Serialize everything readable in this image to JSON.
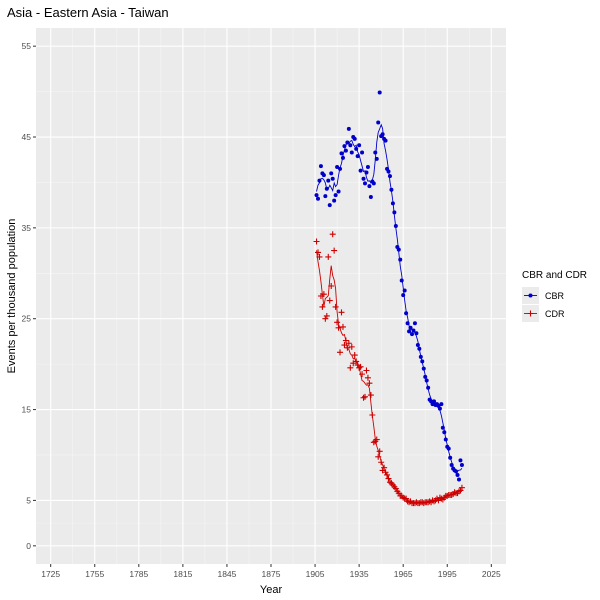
{
  "chart_data": {
    "type": "scatter",
    "title": "Asia - Eastern Asia - Taiwan",
    "xlabel": "Year",
    "ylabel": "Events per thousand population",
    "xlim": [
      1715,
      2035
    ],
    "ylim": [
      -2,
      57
    ],
    "x_ticks": [
      1725,
      1755,
      1785,
      1815,
      1845,
      1875,
      1905,
      1935,
      1965,
      1995,
      2025
    ],
    "y_ticks": [
      0,
      5,
      15,
      25,
      35,
      45,
      55
    ],
    "grid": true,
    "legend": {
      "title": "CBR and CDR",
      "position": "right"
    },
    "series": [
      {
        "name": "CBR",
        "color": "#0000CC",
        "marker": "dot",
        "x": [
          1906,
          1907,
          1908,
          1909,
          1910,
          1911,
          1912,
          1913,
          1914,
          1915,
          1916,
          1917,
          1918,
          1919,
          1920,
          1921,
          1922,
          1923,
          1924,
          1925,
          1926,
          1927,
          1928,
          1929,
          1930,
          1931,
          1932,
          1933,
          1934,
          1935,
          1936,
          1937,
          1938,
          1939,
          1940,
          1941,
          1942,
          1943,
          1944,
          1945,
          1946,
          1947,
          1948,
          1949,
          1950,
          1951,
          1952,
          1953,
          1954,
          1955,
          1956,
          1957,
          1958,
          1959,
          1960,
          1961,
          1962,
          1963,
          1964,
          1965,
          1966,
          1967,
          1968,
          1969,
          1970,
          1971,
          1972,
          1973,
          1974,
          1975,
          1976,
          1977,
          1978,
          1979,
          1980,
          1981,
          1982,
          1983,
          1984,
          1985,
          1986,
          1987,
          1988,
          1989,
          1990,
          1991,
          1992,
          1993,
          1994,
          1995,
          1996,
          1997,
          1998,
          1999,
          2000,
          2001,
          2002,
          2003,
          2004,
          2005
        ],
        "y": [
          38.6,
          38.2,
          40.2,
          41.8,
          41.0,
          40.8,
          38.5,
          39.3,
          40.2,
          37.5,
          41.0,
          40.4,
          38.0,
          38.6,
          41.7,
          39.0,
          41.5,
          43.2,
          42.7,
          44.0,
          43.5,
          44.4,
          45.9,
          44.1,
          43.3,
          45.0,
          44.8,
          43.7,
          42.9,
          44.1,
          41.3,
          43.3,
          40.4,
          39.9,
          41.1,
          41.7,
          39.6,
          38.4,
          40.1,
          39.9,
          43.3,
          42.6,
          46.6,
          49.9,
          45.1,
          45.3,
          44.8,
          44.6,
          41.5,
          41.2,
          40.7,
          39.2,
          37.7,
          36.7,
          35.2,
          32.9,
          32.6,
          31.5,
          29.2,
          27.6,
          28.1,
          25.6,
          24.5,
          23.6,
          24.0,
          23.3,
          23.7,
          24.5,
          23.4,
          22.1,
          21.7,
          20.8,
          20.3,
          19.5,
          18.6,
          18.2,
          17.4,
          16.1,
          15.9,
          15.6,
          15.9,
          15.5,
          15.6,
          15.4,
          15.1,
          15.6,
          13.0,
          12.5,
          11.7,
          10.9,
          10.7,
          9.7,
          8.9,
          8.5,
          8.3,
          8.2,
          7.8,
          7.3,
          9.4,
          8.9
        ]
      },
      {
        "name": "CDR",
        "color": "#CC0000",
        "marker": "plus",
        "x": [
          1906,
          1907,
          1908,
          1909,
          1910,
          1911,
          1912,
          1913,
          1914,
          1915,
          1916,
          1917,
          1918,
          1919,
          1920,
          1921,
          1922,
          1923,
          1924,
          1925,
          1926,
          1927,
          1928,
          1929,
          1930,
          1931,
          1932,
          1933,
          1934,
          1935,
          1936,
          1937,
          1938,
          1939,
          1940,
          1941,
          1942,
          1943,
          1944,
          1945,
          1946,
          1947,
          1948,
          1949,
          1950,
          1951,
          1952,
          1953,
          1954,
          1955,
          1956,
          1957,
          1958,
          1959,
          1960,
          1961,
          1962,
          1963,
          1964,
          1965,
          1966,
          1967,
          1968,
          1969,
          1970,
          1971,
          1972,
          1973,
          1974,
          1975,
          1976,
          1977,
          1978,
          1979,
          1980,
          1981,
          1982,
          1983,
          1984,
          1985,
          1986,
          1987,
          1988,
          1989,
          1990,
          1991,
          1992,
          1993,
          1994,
          1995,
          1996,
          1997,
          1998,
          1999,
          2000,
          2001,
          2002,
          2003,
          2004,
          2005
        ],
        "y": [
          33.5,
          32.3,
          31.8,
          27.5,
          26.3,
          27.7,
          25.0,
          25.3,
          31.8,
          27.0,
          28.6,
          34.3,
          32.5,
          26.3,
          24.6,
          24.0,
          21.3,
          25.7,
          24.1,
          22.1,
          22.6,
          21.8,
          22.3,
          19.6,
          21.9,
          20.1,
          21.0,
          20.3,
          19.9,
          19.6,
          19.7,
          18.9,
          16.3,
          16.4,
          19.3,
          18.5,
          17.9,
          16.6,
          14.4,
          11.4,
          11.5,
          11.7,
          9.8,
          10.4,
          9.2,
          8.3,
          8.6,
          8.1,
          7.8,
          7.4,
          7.0,
          6.9,
          6.7,
          6.5,
          6.3,
          6.0,
          5.8,
          5.5,
          5.5,
          5.3,
          5.2,
          5.2,
          4.9,
          4.8,
          4.9,
          4.7,
          4.7,
          4.7,
          4.8,
          4.7,
          4.7,
          4.8,
          4.8,
          4.7,
          4.8,
          4.8,
          4.8,
          4.9,
          4.8,
          5.0,
          4.9,
          5.0,
          5.2,
          5.0,
          5.3,
          5.2,
          5.1,
          5.3,
          5.5,
          5.5,
          5.6,
          5.6,
          5.6,
          5.7,
          5.9,
          5.8,
          5.8,
          6.0,
          6.1,
          6.4
        ]
      }
    ]
  }
}
